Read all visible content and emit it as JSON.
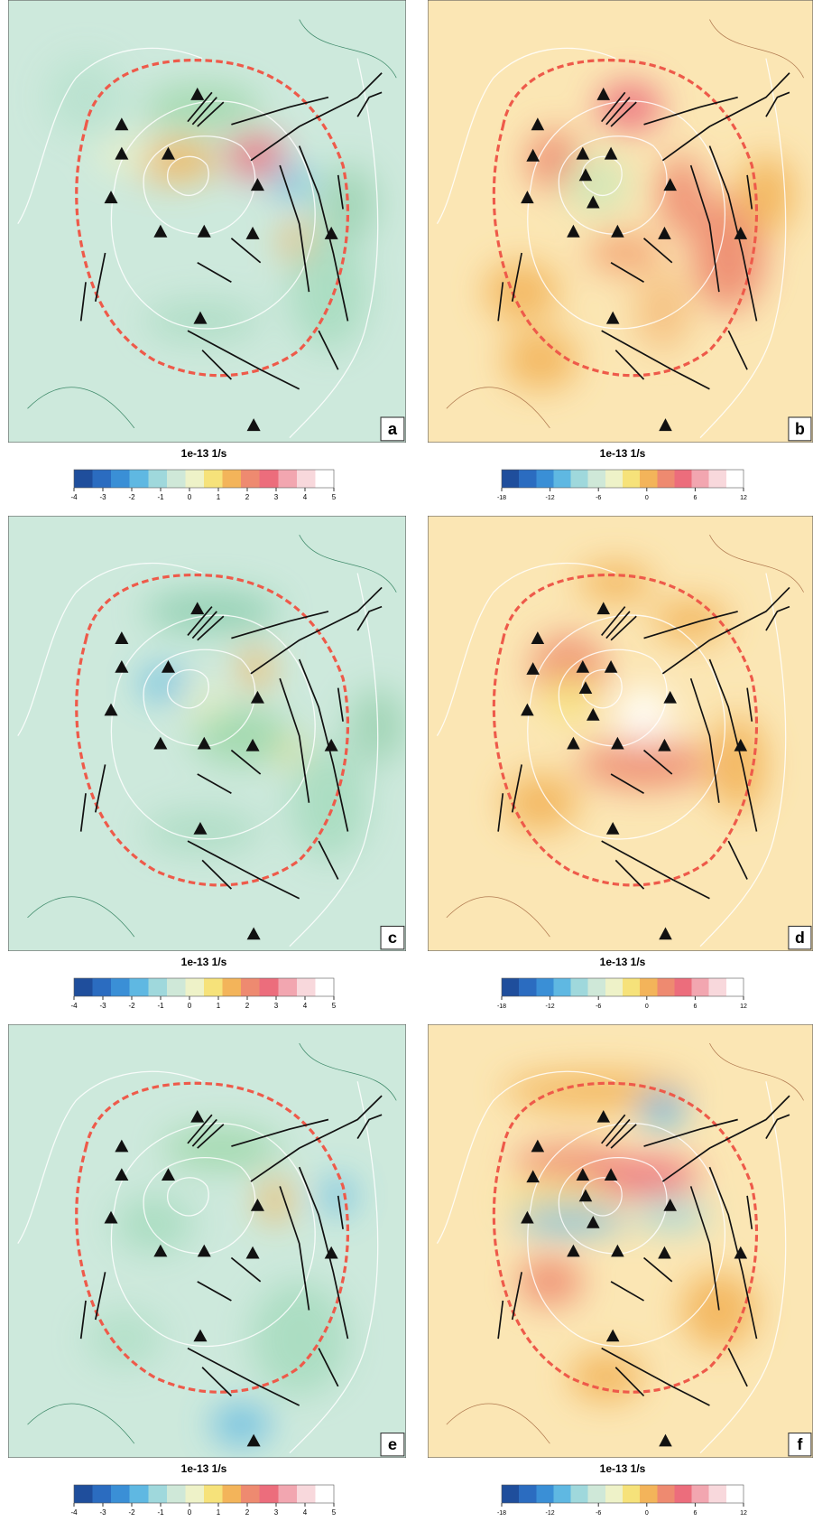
{
  "panels": [
    {
      "label": "a",
      "colorbar": {
        "title": "1e-13 1/s",
        "lim": [
          -4,
          5
        ],
        "ticks": [
          -4,
          -3,
          -2,
          -1,
          0,
          1,
          2,
          3,
          4,
          5
        ]
      }
    },
    {
      "label": "b",
      "colorbar": {
        "title": "1e-13 1/s",
        "lim": [
          -18,
          12
        ],
        "ticks": [
          -18,
          -12,
          -6,
          0,
          6,
          12
        ]
      }
    },
    {
      "label": "c",
      "colorbar": {
        "title": "1e-13 1/s",
        "lim": [
          -4,
          5
        ],
        "ticks": [
          -4,
          -3,
          -2,
          -1,
          0,
          1,
          2,
          3,
          4,
          5
        ]
      }
    },
    {
      "label": "d",
      "colorbar": {
        "title": "1e-13 1/s",
        "lim": [
          -18,
          12
        ],
        "ticks": [
          -18,
          -12,
          -6,
          0,
          6,
          12
        ]
      }
    },
    {
      "label": "e",
      "colorbar": {
        "title": "1e-13 1/s",
        "lim": [
          -4,
          5
        ],
        "ticks": [
          -4,
          -3,
          -2,
          -1,
          0,
          1,
          2,
          3,
          4,
          5
        ]
      }
    },
    {
      "label": "f",
      "colorbar": {
        "title": "1e-13 1/s",
        "lim": [
          -18,
          12
        ],
        "ticks": [
          -18,
          -12,
          -6,
          0,
          6,
          12
        ]
      }
    }
  ],
  "colormap": [
    "#1f4e9c",
    "#2b6cc0",
    "#3a8fd6",
    "#5fb8e2",
    "#9fd8dc",
    "#cfe8d8",
    "#eef2c8",
    "#f6e27a",
    "#f3b45a",
    "#ee8a70",
    "#ec6d7c",
    "#f2a6b0",
    "#f8d8dc",
    "#ffffff"
  ]
}
